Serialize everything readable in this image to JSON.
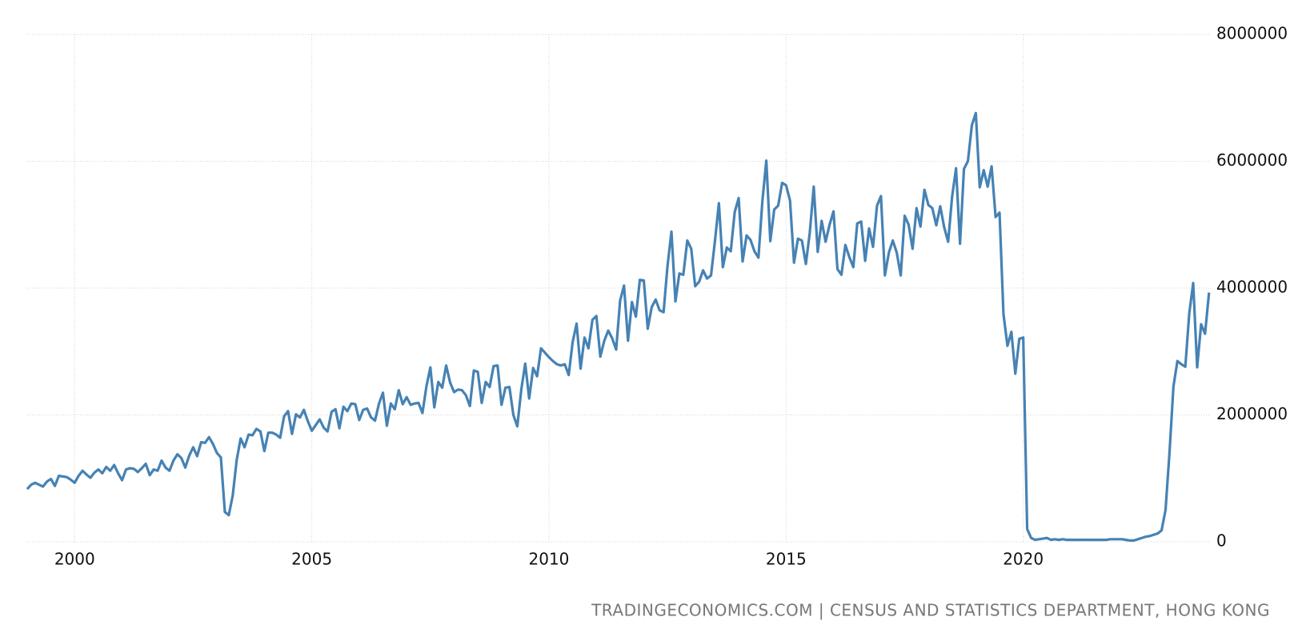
{
  "chart_data": {
    "type": "line",
    "source": "TRADINGECONOMICS.COM | CENSUS AND STATISTICS DEPARTMENT, HONG KONG",
    "color": "#4682b4",
    "grid": true,
    "xlim": [
      1999,
      2023.92
    ],
    "ylim": [
      0,
      8000000
    ],
    "xticks": [
      2000,
      2005,
      2010,
      2015,
      2020
    ],
    "yticks": [
      0,
      2000000,
      4000000,
      6000000,
      8000000
    ],
    "x": [
      1999.0,
      1999.083,
      1999.167,
      1999.25,
      1999.333,
      1999.417,
      1999.5,
      1999.583,
      1999.667,
      1999.75,
      1999.833,
      1999.917,
      2000.0,
      2000.083,
      2000.167,
      2000.25,
      2000.333,
      2000.417,
      2000.5,
      2000.583,
      2000.667,
      2000.75,
      2000.833,
      2000.917,
      2001.0,
      2001.083,
      2001.167,
      2001.25,
      2001.333,
      2001.417,
      2001.5,
      2001.583,
      2001.667,
      2001.75,
      2001.833,
      2001.917,
      2002.0,
      2002.083,
      2002.167,
      2002.25,
      2002.333,
      2002.417,
      2002.5,
      2002.583,
      2002.667,
      2002.75,
      2002.833,
      2002.917,
      2003.0,
      2003.083,
      2003.167,
      2003.25,
      2003.333,
      2003.417,
      2003.5,
      2003.583,
      2003.667,
      2003.75,
      2003.833,
      2003.917,
      2004.0,
      2004.083,
      2004.167,
      2004.25,
      2004.333,
      2004.417,
      2004.5,
      2004.583,
      2004.667,
      2004.75,
      2004.833,
      2004.917,
      2005.0,
      2005.083,
      2005.167,
      2005.25,
      2005.333,
      2005.417,
      2005.5,
      2005.583,
      2005.667,
      2005.75,
      2005.833,
      2005.917,
      2006.0,
      2006.083,
      2006.167,
      2006.25,
      2006.333,
      2006.417,
      2006.5,
      2006.583,
      2006.667,
      2006.75,
      2006.833,
      2006.917,
      2007.0,
      2007.083,
      2007.167,
      2007.25,
      2007.333,
      2007.417,
      2007.5,
      2007.583,
      2007.667,
      2007.75,
      2007.833,
      2007.917,
      2008.0,
      2008.083,
      2008.167,
      2008.25,
      2008.333,
      2008.417,
      2008.5,
      2008.583,
      2008.667,
      2008.75,
      2008.833,
      2008.917,
      2009.0,
      2009.083,
      2009.167,
      2009.25,
      2009.333,
      2009.417,
      2009.5,
      2009.583,
      2009.667,
      2009.75,
      2009.833,
      2009.917,
      2010.0,
      2010.083,
      2010.167,
      2010.25,
      2010.333,
      2010.417,
      2010.5,
      2010.583,
      2010.667,
      2010.75,
      2010.833,
      2010.917,
      2011.0,
      2011.083,
      2011.167,
      2011.25,
      2011.333,
      2011.417,
      2011.5,
      2011.583,
      2011.667,
      2011.75,
      2011.833,
      2011.917,
      2012.0,
      2012.083,
      2012.167,
      2012.25,
      2012.333,
      2012.417,
      2012.5,
      2012.583,
      2012.667,
      2012.75,
      2012.833,
      2012.917,
      2013.0,
      2013.083,
      2013.167,
      2013.25,
      2013.333,
      2013.417,
      2013.5,
      2013.583,
      2013.667,
      2013.75,
      2013.833,
      2013.917,
      2014.0,
      2014.083,
      2014.167,
      2014.25,
      2014.333,
      2014.417,
      2014.5,
      2014.583,
      2014.667,
      2014.75,
      2014.833,
      2014.917,
      2015.0,
      2015.083,
      2015.167,
      2015.25,
      2015.333,
      2015.417,
      2015.5,
      2015.583,
      2015.667,
      2015.75,
      2015.833,
      2015.917,
      2016.0,
      2016.083,
      2016.167,
      2016.25,
      2016.333,
      2016.417,
      2016.5,
      2016.583,
      2016.667,
      2016.75,
      2016.833,
      2016.917,
      2017.0,
      2017.083,
      2017.167,
      2017.25,
      2017.333,
      2017.417,
      2017.5,
      2017.583,
      2017.667,
      2017.75,
      2017.833,
      2017.917,
      2018.0,
      2018.083,
      2018.167,
      2018.25,
      2018.333,
      2018.417,
      2018.5,
      2018.583,
      2018.667,
      2018.75,
      2018.833,
      2018.917,
      2019.0,
      2019.083,
      2019.167,
      2019.25,
      2019.333,
      2019.417,
      2019.5,
      2019.583,
      2019.667,
      2019.75,
      2019.833,
      2019.917,
      2020.0,
      2020.083,
      2020.167,
      2020.25,
      2020.333,
      2020.417,
      2020.5,
      2020.583,
      2020.667,
      2020.75,
      2020.833,
      2020.917,
      2021.0,
      2021.083,
      2021.167,
      2021.25,
      2021.333,
      2021.417,
      2021.5,
      2021.583,
      2021.667,
      2021.75,
      2021.833,
      2021.917,
      2022.0,
      2022.083,
      2022.167,
      2022.25,
      2022.333,
      2022.417,
      2022.5,
      2022.583,
      2022.667,
      2022.75,
      2022.833,
      2022.917,
      2023.0,
      2023.083,
      2023.167,
      2023.25,
      2023.333,
      2023.417,
      2023.5,
      2023.583,
      2023.667,
      2023.75,
      2023.833,
      2023.917
    ],
    "values": [
      830000,
      900000,
      930000,
      900000,
      870000,
      950000,
      990000,
      880000,
      1040000,
      1030000,
      1020000,
      980000,
      930000,
      1040000,
      1120000,
      1060000,
      1010000,
      1090000,
      1140000,
      1080000,
      1180000,
      1120000,
      1210000,
      1080000,
      970000,
      1140000,
      1160000,
      1150000,
      1100000,
      1160000,
      1230000,
      1050000,
      1140000,
      1120000,
      1280000,
      1170000,
      1120000,
      1280000,
      1380000,
      1320000,
      1170000,
      1360000,
      1490000,
      1350000,
      1570000,
      1560000,
      1650000,
      1540000,
      1400000,
      1330000,
      470000,
      420000,
      730000,
      1290000,
      1630000,
      1490000,
      1690000,
      1680000,
      1780000,
      1740000,
      1430000,
      1720000,
      1720000,
      1690000,
      1640000,
      1980000,
      2060000,
      1700000,
      2010000,
      1960000,
      2080000,
      1900000,
      1750000,
      1840000,
      1930000,
      1800000,
      1740000,
      2050000,
      2090000,
      1790000,
      2130000,
      2060000,
      2180000,
      2170000,
      1920000,
      2080000,
      2100000,
      1960000,
      1910000,
      2180000,
      2350000,
      1830000,
      2180000,
      2090000,
      2390000,
      2170000,
      2280000,
      2160000,
      2180000,
      2190000,
      2030000,
      2450000,
      2750000,
      2120000,
      2520000,
      2430000,
      2780000,
      2510000,
      2360000,
      2400000,
      2390000,
      2310000,
      2140000,
      2700000,
      2680000,
      2190000,
      2520000,
      2440000,
      2770000,
      2780000,
      2160000,
      2430000,
      2440000,
      2000000,
      1820000,
      2400000,
      2810000,
      2260000,
      2740000,
      2610000,
      3050000,
      2980000,
      2910000,
      2850000,
      2800000,
      2780000,
      2800000,
      2630000,
      3150000,
      3440000,
      2730000,
      3220000,
      3050000,
      3500000,
      3560000,
      2920000,
      3170000,
      3330000,
      3210000,
      3030000,
      3800000,
      4040000,
      3170000,
      3780000,
      3550000,
      4130000,
      4120000,
      3360000,
      3700000,
      3820000,
      3650000,
      3620000,
      4350000,
      4890000,
      3790000,
      4230000,
      4210000,
      4750000,
      4620000,
      4030000,
      4100000,
      4280000,
      4150000,
      4200000,
      4740000,
      5340000,
      4330000,
      4640000,
      4580000,
      5200000,
      5420000,
      4420000,
      4830000,
      4760000,
      4580000,
      4480000,
      5370000,
      6010000,
      4740000,
      5240000,
      5300000,
      5660000,
      5620000,
      5380000,
      4400000,
      4780000,
      4750000,
      4380000,
      4880000,
      5600000,
      4570000,
      5060000,
      4730000,
      5000000,
      5210000,
      4300000,
      4210000,
      4680000,
      4490000,
      4330000,
      5020000,
      5050000,
      4430000,
      4940000,
      4650000,
      5300000,
      5450000,
      4200000,
      4560000,
      4750000,
      4560000,
      4200000,
      5140000,
      5000000,
      4620000,
      5260000,
      4970000,
      5550000,
      5310000,
      5260000,
      4990000,
      5290000,
      4960000,
      4730000,
      5440000,
      5890000,
      4700000,
      5880000,
      6000000,
      6570000,
      6760000,
      5590000,
      5860000,
      5600000,
      5920000,
      5120000,
      5190000,
      3590000,
      3090000,
      3310000,
      2650000,
      3200000,
      3220000,
      200000,
      60000,
      30000,
      40000,
      50000,
      60000,
      30000,
      40000,
      30000,
      40000,
      30000,
      30000,
      30000,
      30000,
      30000,
      30000,
      30000,
      30000,
      30000,
      30000,
      30000,
      40000,
      40000,
      40000,
      40000,
      30000,
      20000,
      20000,
      40000,
      60000,
      80000,
      90000,
      110000,
      130000,
      180000,
      500000,
      1400000,
      2450000,
      2850000,
      2800000,
      2760000,
      3600000,
      4080000,
      2750000,
      3430000,
      3280000,
      3930000
    ]
  }
}
